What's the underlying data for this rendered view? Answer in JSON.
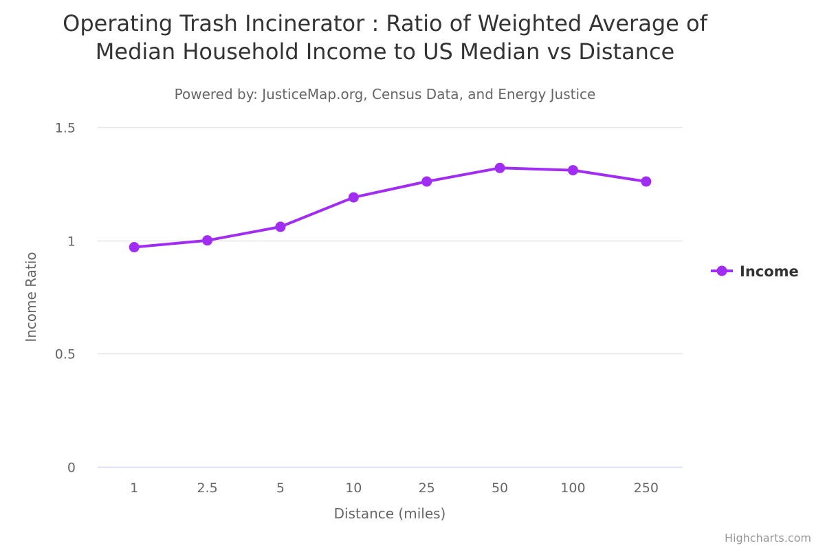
{
  "title": "Operating Trash Incinerator : Ratio of Weighted Average of\nMedian Household Income to US Median vs Distance",
  "subtitle": "Powered by: JusticeMap.org, Census Data, and Energy Justice",
  "credits": "Highcharts.com",
  "colors": {
    "series": "#a12df2",
    "grid": "#e6e6e6",
    "axis_line": "#ccd6eb"
  },
  "chart_data": {
    "type": "line",
    "title": "Operating Trash Incinerator : Ratio of Weighted Average of Median Household Income to US Median vs Distance",
    "subtitle": "Powered by: JusticeMap.org, Census Data, and Energy Justice",
    "xlabel": "Distance (miles)",
    "ylabel": "Income Ratio",
    "categories": [
      "1",
      "2.5",
      "5",
      "10",
      "25",
      "50",
      "100",
      "250"
    ],
    "y_ticks": [
      "0",
      "0.5",
      "1",
      "1.5"
    ],
    "ylim": [
      0,
      1.5
    ],
    "grid": true,
    "legend_position": "right",
    "series": [
      {
        "name": "Income",
        "values": [
          0.97,
          1.0,
          1.06,
          1.19,
          1.26,
          1.32,
          1.31,
          1.26
        ]
      }
    ]
  }
}
